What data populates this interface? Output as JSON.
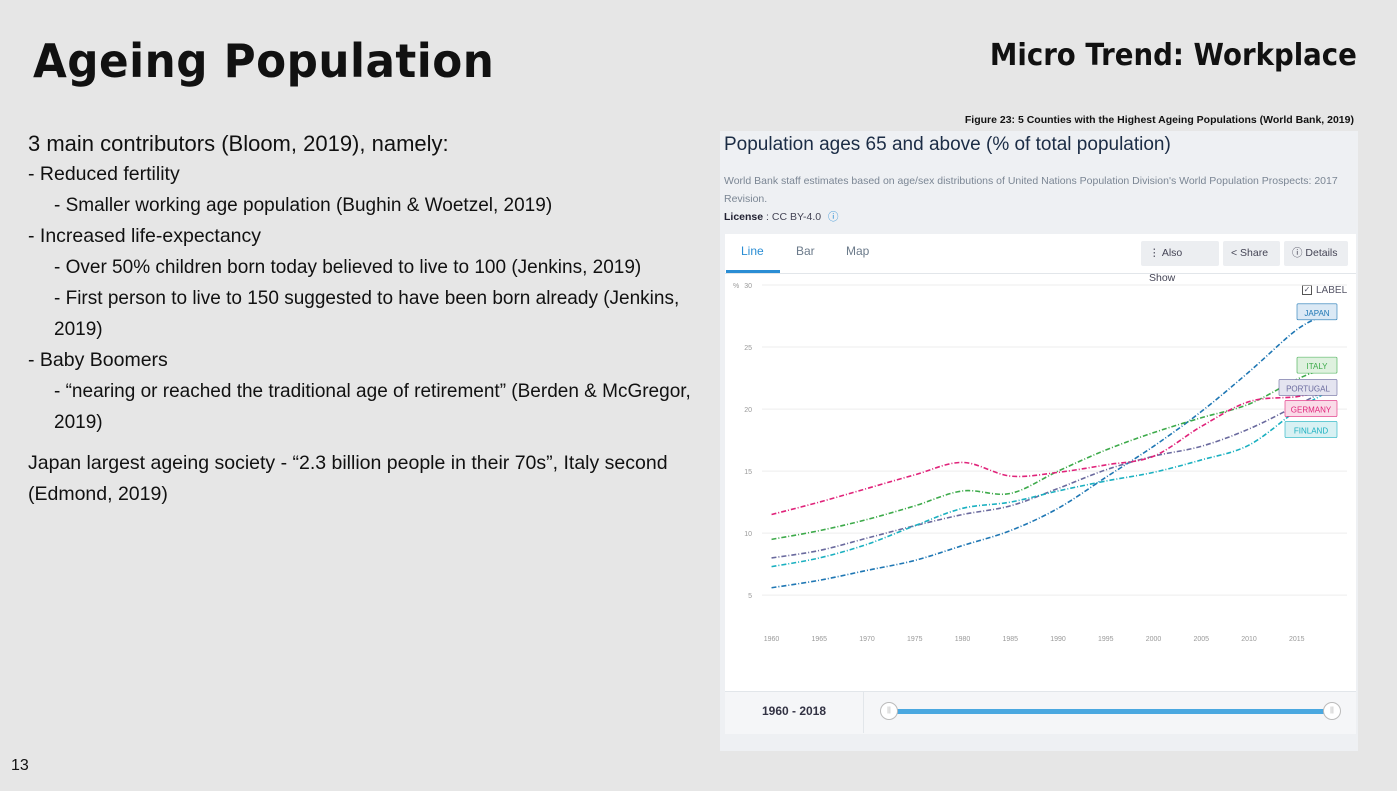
{
  "slide": {
    "title": "Ageing Population",
    "section": "Micro Trend: Workplace",
    "page_number": "13",
    "bullets": [
      {
        "level": 0,
        "text": "3 main contributors (Bloom, 2019), namely:"
      },
      {
        "level": 1,
        "text": "- Reduced fertility"
      },
      {
        "level": 2,
        "text": "- Smaller working age population (Bughin & Woetzel, 2019)"
      },
      {
        "level": 1,
        "text": "- Increased life-expectancy"
      },
      {
        "level": 2,
        "text": "- Over 50% children born today believed to live to 100 (Jenkins, 2019)"
      },
      {
        "level": 2,
        "text": "- First person to live to 150 suggested to have been born already (Jenkins, 2019)"
      },
      {
        "level": 1,
        "text": "- Baby Boomers"
      },
      {
        "level": 2,
        "text": "- “nearing or reached the traditional age of retirement” (Berden & McGregor, 2019)"
      },
      {
        "level": 1,
        "text": "Japan largest ageing society - “2.3 billion people in their 70s”, Italy second (Edmond, 2019)",
        "gap": true
      }
    ],
    "figure_caption": "Figure 23: 5 Counties with the Highest Ageing Populations (World Bank, 2019)"
  },
  "indicator": {
    "title": "Population ages 65 and above (% of total population)",
    "note": "World Bank staff estimates based on age/sex distributions of United Nations Population Division's World Population Prospects: 2017 Revision.",
    "license_label": "License",
    "license_value": ": CC BY-4.0",
    "info_icon": "ⓘ"
  },
  "tabs": {
    "line": "Line",
    "bar": "Bar",
    "map": "Map"
  },
  "buttons": {
    "also_show": "⋮ Also Show",
    "share": "< Share",
    "details": "ⓘ Details"
  },
  "label_toggle": {
    "text": "LABEL",
    "checked": true
  },
  "range": {
    "label": "1960 - 2018"
  },
  "colors": {
    "accent": "#2a8dd4"
  },
  "chart_data": {
    "type": "line",
    "title": "Population ages 65 and above (% of total population)",
    "ylabel": "%",
    "ylim": [
      3,
      30
    ],
    "xlim": [
      1959,
      2019
    ],
    "x_ticks": [
      1960,
      1965,
      1970,
      1975,
      1980,
      1985,
      1990,
      1995,
      2000,
      2005,
      2010,
      2015
    ],
    "y_ticks": [
      5,
      10,
      15,
      20,
      25,
      30
    ],
    "grid": true,
    "x": [
      1960,
      1965,
      1970,
      1975,
      1980,
      1985,
      1990,
      1995,
      2000,
      2005,
      2010,
      2015,
      2018
    ],
    "series": [
      {
        "name": "JAPAN",
        "color": "#1f77b4",
        "label_bg": "#dbe9f5",
        "values": [
          5.6,
          6.2,
          7.0,
          7.8,
          9.0,
          10.2,
          12.0,
          14.5,
          17.0,
          19.8,
          23.0,
          26.4,
          27.6
        ]
      },
      {
        "name": "ITALY",
        "color": "#3daa4a",
        "label_bg": "#dff1df",
        "values": [
          9.5,
          10.2,
          11.1,
          12.2,
          13.4,
          13.2,
          15.0,
          16.7,
          18.1,
          19.3,
          20.4,
          22.4,
          23.3
        ]
      },
      {
        "name": "PORTUGAL",
        "color": "#6a6a9e",
        "label_bg": "#e4e4f0",
        "values": [
          8.0,
          8.6,
          9.6,
          10.6,
          11.5,
          12.2,
          13.6,
          15.1,
          16.2,
          17.0,
          18.4,
          20.3,
          21.5
        ]
      },
      {
        "name": "GERMANY",
        "color": "#e0237a",
        "label_bg": "#fadbe8",
        "values": [
          11.5,
          12.5,
          13.6,
          14.7,
          15.7,
          14.6,
          14.9,
          15.5,
          16.2,
          18.6,
          20.6,
          21.0,
          21.5
        ]
      },
      {
        "name": "FINLAND",
        "color": "#1ab0c0",
        "label_bg": "#d8f1f3",
        "values": [
          7.3,
          8.0,
          9.1,
          10.6,
          12.0,
          12.5,
          13.4,
          14.2,
          14.9,
          15.9,
          17.1,
          19.9,
          21.3
        ]
      }
    ]
  }
}
